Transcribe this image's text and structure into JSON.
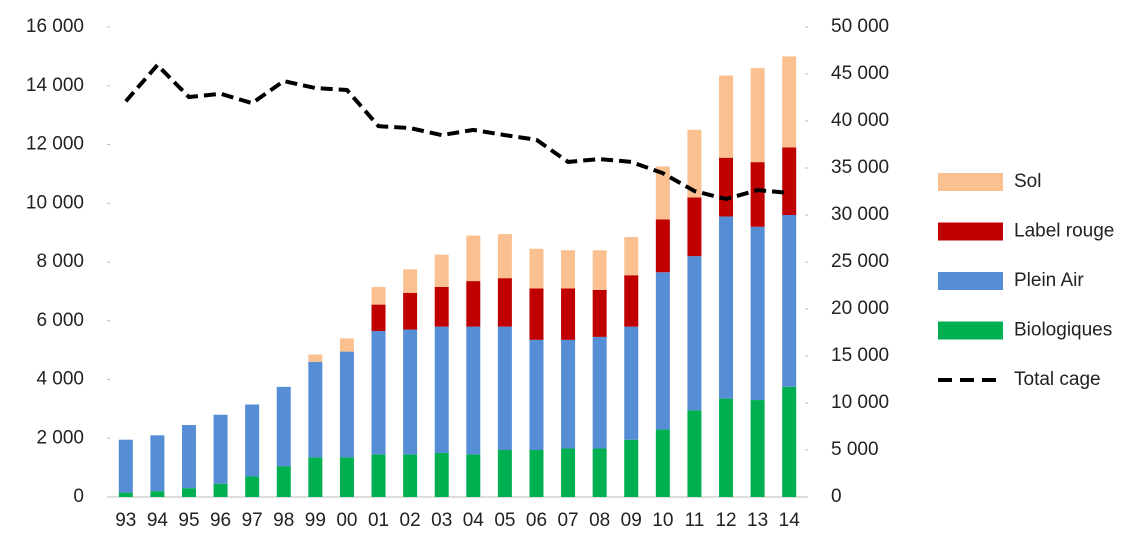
{
  "chart_data": {
    "type": "bar",
    "stacked": true,
    "categories": [
      "93",
      "94",
      "95",
      "96",
      "97",
      "98",
      "99",
      "00",
      "01",
      "02",
      "03",
      "04",
      "05",
      "06",
      "07",
      "08",
      "09",
      "10",
      "11",
      "12",
      "13",
      "14"
    ],
    "series": [
      {
        "name": "Biologiques",
        "color": "#00b050",
        "values": [
          150,
          200,
          300,
          450,
          700,
          1050,
          1350,
          1350,
          1450,
          1450,
          1500,
          1450,
          1600,
          1600,
          1650,
          1650,
          1950,
          2300,
          2950,
          3350,
          3300,
          3750
        ]
      },
      {
        "name": "Plein Air",
        "color": "#558ed5",
        "values": [
          1800,
          1900,
          2150,
          2350,
          2450,
          2700,
          3250,
          3600,
          4200,
          4250,
          4300,
          4350,
          4200,
          3750,
          3700,
          3800,
          3850,
          5350,
          5250,
          6200,
          5900,
          5850
        ]
      },
      {
        "name": "Label rouge",
        "color": "#c00000",
        "values": [
          0,
          0,
          0,
          0,
          0,
          0,
          0,
          0,
          900,
          1250,
          1350,
          1550,
          1650,
          1750,
          1750,
          1600,
          1750,
          1800,
          2000,
          2000,
          2200,
          2300
        ]
      },
      {
        "name": "Sol",
        "color": "#fac090",
        "values": [
          0,
          0,
          0,
          0,
          0,
          0,
          250,
          450,
          600,
          800,
          1100,
          1550,
          1500,
          1350,
          1300,
          1350,
          1300,
          1800,
          2300,
          2800,
          3200,
          3100
        ]
      },
      {
        "name": "Total cage",
        "type": "line",
        "axis": "y2",
        "color": "#000000",
        "dashed": true,
        "values": [
          42100,
          45950,
          42550,
          42900,
          41900,
          44250,
          43500,
          43300,
          39450,
          39250,
          38500,
          39050,
          38500,
          38000,
          35650,
          35950,
          35650,
          34450,
          32550,
          31700,
          32650,
          32350
        ]
      }
    ],
    "ylim": [
      0,
      16000
    ],
    "yticks": [
      0,
      {
        "value": 2000,
        "label": "2 000"
      },
      {
        "value": 4000,
        "label": "4 000"
      },
      {
        "value": 6000,
        "label": "6 000"
      },
      {
        "value": 8000,
        "label": "8 000"
      },
      {
        "value": 10000,
        "label": "10 000"
      },
      {
        "value": 12000,
        "label": "12 000"
      },
      {
        "value": 14000,
        "label": "14 000"
      },
      {
        "value": 16000,
        "label": "16 000"
      }
    ],
    "y2lim": [
      0,
      50000
    ],
    "y2ticks": [
      0,
      {
        "value": 5000,
        "label": "5 000"
      },
      {
        "value": 10000,
        "label": "10 000"
      },
      {
        "value": 15000,
        "label": "15 000"
      },
      {
        "value": 20000,
        "label": "20 000"
      },
      {
        "value": 25000,
        "label": "25 000"
      },
      {
        "value": 30000,
        "label": "30 000"
      },
      {
        "value": 35000,
        "label": "35 000"
      },
      {
        "value": 40000,
        "label": "40 000"
      },
      {
        "value": 45000,
        "label": "45 000"
      },
      {
        "value": 50000,
        "label": "50 000"
      }
    ],
    "grid": false,
    "legend": "right"
  }
}
